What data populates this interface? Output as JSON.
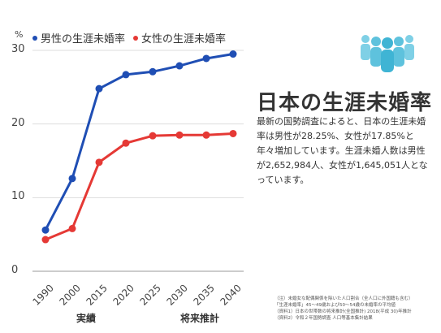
{
  "chart_data": {
    "type": "line",
    "ylabel": "%",
    "ylim": [
      0,
      30
    ],
    "yticks": [
      0,
      10,
      20,
      30
    ],
    "categories": [
      "1990",
      "2000",
      "2015",
      "2020",
      "2025",
      "2030",
      "2035",
      "2040"
    ],
    "group_labels": [
      "実績",
      "将来推計"
    ],
    "grid": true,
    "legend_position": "top-left",
    "series": [
      {
        "name": "男性の生涯未婚率",
        "color": "#1f4eb4",
        "values": [
          5.6,
          12.6,
          24.8,
          26.7,
          27.1,
          27.9,
          28.9,
          29.5
        ]
      },
      {
        "name": "女性の生涯未婚率",
        "color": "#e53935",
        "values": [
          4.3,
          5.8,
          14.8,
          17.4,
          18.4,
          18.5,
          18.5,
          18.7
        ]
      }
    ]
  },
  "side": {
    "title": "日本の生涯未婚率",
    "description": "最新の国勢調査によると、日本の生涯未婚率は男性が28.25%、女性が17.85%と年々増加しています。生涯未婚人数は男性が2,652,984人、女性が1,645,051人となっています。",
    "icon": "people-group-icon",
    "icon_color": "#5ec2dd"
  },
  "footnotes": [
    "（注）未婚女な配偶関係を除いた人口割合（全人口に外国籍も含む）",
    "「生涯未婚率」45〜49歳および50〜54歳の未婚率の平均値",
    "（資料1）日本の世帯数の将来推計(全国推計) 2018(平成 30)年推計",
    "（資料2）令和２年国勢調査 人口等基本集計結果"
  ]
}
